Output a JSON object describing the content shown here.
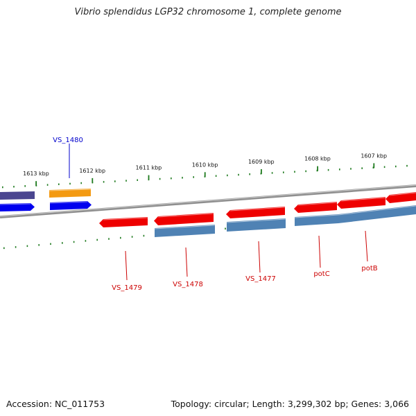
{
  "title": "Vibrio splendidus LGP32 chromosome 1, complete genome",
  "footer": {
    "accession": "Accession: NC_011753",
    "summary": "Topology: circular; Length: 3,299,302 bp; Genes: 3,066"
  },
  "ticks": [
    {
      "label": "1613 kbp",
      "kbp": 1613
    },
    {
      "label": "1612 kbp",
      "kbp": 1612
    },
    {
      "label": "1611 kbp",
      "kbp": 1611
    },
    {
      "label": "1610 kbp",
      "kbp": 1610
    },
    {
      "label": "1609 kbp",
      "kbp": 1609
    },
    {
      "label": "1608 kbp",
      "kbp": 1608
    },
    {
      "label": "1607 kbp",
      "kbp": 1607
    }
  ],
  "colors": {
    "forward_cds": "#ee0000",
    "forward_gene": "#4f82b4",
    "reverse_cds": "#0000ee",
    "reverse_gene": "#4b4690",
    "orange_feature": "#f39a12",
    "backbone": "#8f8f8f",
    "ticks": "#1e7a1e",
    "label_blue": "#0000cc",
    "label_red": "#cc0000"
  },
  "labels": [
    {
      "text": "VS_1480",
      "color": "label_blue"
    },
    {
      "text": "VS_1479",
      "color": "label_red"
    },
    {
      "text": "VS_1478",
      "color": "label_red"
    },
    {
      "text": "VS_1477",
      "color": "label_red"
    },
    {
      "text": "potC",
      "color": "label_red"
    },
    {
      "text": "potB",
      "color": "label_red"
    }
  ]
}
